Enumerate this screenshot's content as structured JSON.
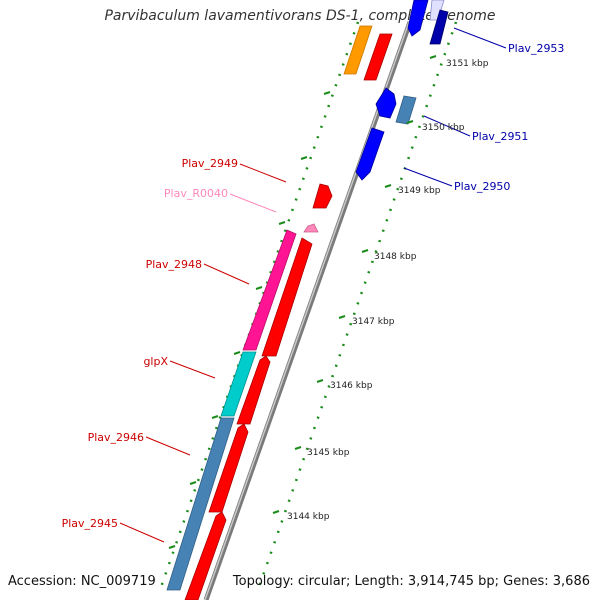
{
  "title": "Parvibaculum lavamentivorans DS-1, complete genome",
  "accession": "Accession: NC_009719",
  "topology": "Topology: circular; Length: 3,914,745 bp; Genes: 3,686",
  "colors": {
    "backbone": "#8a8a8a",
    "tick": "#1a8c1a",
    "left_label": "#cc0000",
    "rna_label": "#ff88bb",
    "right_label": "#0000aa",
    "red_gene": "#ff0000",
    "blue_gene": "#0000ff",
    "steel_gene": "#4682b4",
    "magenta_gene": "#ff1493",
    "cyan_gene": "#00cccc",
    "orange_gene": "#ff9900",
    "pink_rna": "#ff88bb"
  },
  "kbp_ticks": [
    "3144 kbp",
    "3145 kbp",
    "3146 kbp",
    "3147 kbp",
    "3148 kbp",
    "3149 kbp",
    "3150 kbp",
    "3151 kbp"
  ],
  "left_labels": [
    "Plav_2949",
    "Plav_R0040",
    "Plav_2948",
    "glpX",
    "Plav_2946",
    "Plav_2945"
  ],
  "right_labels": [
    "Plav_2953",
    "Plav_2951",
    "Plav_2950"
  ]
}
